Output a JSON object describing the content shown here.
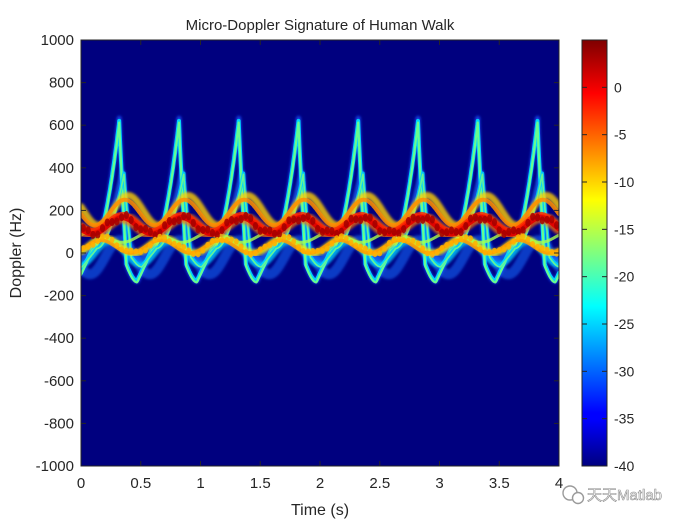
{
  "chart_data": {
    "type": "heatmap",
    "title": "Micro-Doppler Signature of Human Walk",
    "xlabel": "Time (s)",
    "ylabel": "Doppler (Hz)",
    "xlim": [
      0,
      4
    ],
    "ylim": [
      -1000,
      1000
    ],
    "x_ticks": [
      "0",
      "0.5",
      "1",
      "1.5",
      "2",
      "2.5",
      "3",
      "3.5",
      "4"
    ],
    "y_ticks": [
      "1000",
      "800",
      "600",
      "400",
      "200",
      "0",
      "-200",
      "-400",
      "-600",
      "-800",
      "-1000"
    ],
    "colormap": "jet",
    "color_range": [
      -40,
      5
    ],
    "colorbar_ticks": [
      "0",
      "-5",
      "-10",
      "-15",
      "-20",
      "-25",
      "-30",
      "-35",
      "-40"
    ],
    "background_color": "#00007f",
    "gait_period_s": 0.5,
    "features": {
      "peak_doppler_hz": 620,
      "min_doppler_hz": -130,
      "torso_band_center_hz": 130,
      "torso_band_level": 1
    }
  },
  "watermark": {
    "text": "天天Matlab"
  }
}
